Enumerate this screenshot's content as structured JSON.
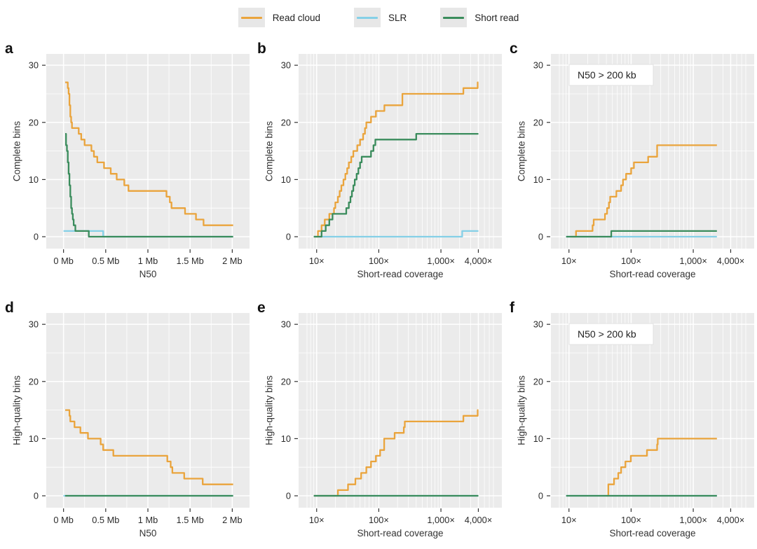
{
  "styles": {
    "plot_bg": "#EBEBEB",
    "grid_color": "#FFFFFF",
    "tick_text_color": "#2B2B2B",
    "axis_title_color": "#333333",
    "annotation_bg": "#FFFFFF",
    "annotation_border": "#E2E2E2"
  },
  "legend": {
    "items": [
      {
        "label": "Read cloud",
        "color": "#EAA43C"
      },
      {
        "label": "SLR",
        "color": "#85D0E7"
      },
      {
        "label": "Short read",
        "color": "#3A8C5C"
      }
    ]
  },
  "chart_data": [
    {
      "panel_label": "a",
      "type": "line",
      "interpolation": "step-after",
      "title": "",
      "xlabel": "N50",
      "ylabel": "Complete bins",
      "x_scale": "linear",
      "xlim": [
        0,
        2
      ],
      "ylim": [
        0,
        30
      ],
      "x_ticks": [
        {
          "v": 0,
          "label": "0 Mb"
        },
        {
          "v": 0.5,
          "label": "0.5 Mb"
        },
        {
          "v": 1,
          "label": "1 Mb"
        },
        {
          "v": 1.5,
          "label": "1.5 Mb"
        },
        {
          "v": 2,
          "label": "2 Mb"
        }
      ],
      "y_ticks": [
        {
          "v": 0,
          "label": "0"
        },
        {
          "v": 10,
          "label": "10"
        },
        {
          "v": 20,
          "label": "20"
        },
        {
          "v": 30,
          "label": "30"
        }
      ],
      "annotation": null,
      "series": [
        {
          "name": "Read cloud",
          "color": "#EAA43C",
          "x_end": 2.01,
          "points": [
            [
              0.02,
              27
            ],
            [
              0.05,
              26
            ],
            [
              0.06,
              25
            ],
            [
              0.07,
              23
            ],
            [
              0.08,
              21
            ],
            [
              0.09,
              20
            ],
            [
              0.1,
              19
            ],
            [
              0.18,
              18
            ],
            [
              0.21,
              17
            ],
            [
              0.25,
              16
            ],
            [
              0.33,
              15
            ],
            [
              0.36,
              14
            ],
            [
              0.4,
              13
            ],
            [
              0.48,
              12
            ],
            [
              0.56,
              11
            ],
            [
              0.63,
              10
            ],
            [
              0.72,
              9
            ],
            [
              0.77,
              8
            ],
            [
              1.22,
              7
            ],
            [
              1.26,
              6
            ],
            [
              1.28,
              5
            ],
            [
              1.44,
              4
            ],
            [
              1.57,
              3
            ],
            [
              1.66,
              2
            ]
          ]
        },
        {
          "name": "SLR",
          "color": "#85D0E7",
          "x_end": 2.01,
          "points": [
            [
              0,
              1
            ],
            [
              0.47,
              0
            ]
          ]
        },
        {
          "name": "Short read",
          "color": "#3A8C5C",
          "x_end": 2.01,
          "points": [
            [
              0.02,
              18
            ],
            [
              0.03,
              16
            ],
            [
              0.04,
              15
            ],
            [
              0.05,
              13
            ],
            [
              0.06,
              11
            ],
            [
              0.07,
              9
            ],
            [
              0.08,
              7
            ],
            [
              0.09,
              5
            ],
            [
              0.1,
              4
            ],
            [
              0.11,
              3
            ],
            [
              0.12,
              2
            ],
            [
              0.14,
              1
            ],
            [
              0.3,
              0
            ]
          ]
        }
      ]
    },
    {
      "panel_label": "b",
      "type": "line",
      "interpolation": "step-after",
      "title": "",
      "xlabel": "Short-read coverage",
      "ylabel": "Complete bins",
      "x_scale": "log",
      "xlim": [
        10,
        4000
      ],
      "ylim": [
        0,
        30
      ],
      "x_ticks": [
        {
          "v": 10,
          "label": "10×"
        },
        {
          "v": 100,
          "label": "100×"
        },
        {
          "v": 1000,
          "label": "1,000×"
        },
        {
          "v": 4000,
          "label": "4,000×"
        }
      ],
      "y_ticks": [
        {
          "v": 0,
          "label": "0"
        },
        {
          "v": 10,
          "label": "10"
        },
        {
          "v": 20,
          "label": "20"
        },
        {
          "v": 30,
          "label": "30"
        }
      ],
      "annotation": null,
      "series": [
        {
          "name": "Read cloud",
          "color": "#EAA43C",
          "x_end": 4000,
          "points": [
            [
              9,
              0
            ],
            [
              10.5,
              1
            ],
            [
              12,
              2
            ],
            [
              13.5,
              3
            ],
            [
              16,
              4
            ],
            [
              19,
              5
            ],
            [
              20,
              6
            ],
            [
              22,
              7
            ],
            [
              23.5,
              8
            ],
            [
              25,
              9
            ],
            [
              27,
              10
            ],
            [
              29,
              11
            ],
            [
              31,
              12
            ],
            [
              33,
              13
            ],
            [
              36,
              14
            ],
            [
              39,
              15
            ],
            [
              45,
              16
            ],
            [
              50,
              17
            ],
            [
              56,
              18
            ],
            [
              60,
              19
            ],
            [
              63,
              20
            ],
            [
              75,
              21
            ],
            [
              90,
              22
            ],
            [
              123,
              23
            ],
            [
              240,
              25
            ],
            [
              2300,
              26
            ],
            [
              3900,
              27
            ]
          ]
        },
        {
          "name": "SLR",
          "color": "#85D0E7",
          "x_end": 4000,
          "points": [
            [
              9,
              0
            ],
            [
              2200,
              1
            ]
          ]
        },
        {
          "name": "Short read",
          "color": "#3A8C5C",
          "x_end": 4000,
          "points": [
            [
              9,
              0
            ],
            [
              12,
              1
            ],
            [
              14,
              2
            ],
            [
              16,
              3
            ],
            [
              18,
              4
            ],
            [
              30,
              5
            ],
            [
              33,
              6
            ],
            [
              35,
              7
            ],
            [
              37,
              8
            ],
            [
              39,
              9
            ],
            [
              41,
              10
            ],
            [
              44,
              11
            ],
            [
              47,
              12
            ],
            [
              50,
              13
            ],
            [
              53,
              14
            ],
            [
              75,
              15
            ],
            [
              82,
              16
            ],
            [
              88,
              17
            ],
            [
              400,
              18
            ]
          ]
        }
      ]
    },
    {
      "panel_label": "c",
      "type": "line",
      "interpolation": "step-after",
      "title": "",
      "xlabel": "Short-read coverage",
      "ylabel": "Complete bins",
      "x_scale": "log",
      "xlim": [
        10,
        4000
      ],
      "ylim": [
        0,
        30
      ],
      "x_ticks": [
        {
          "v": 10,
          "label": "10×"
        },
        {
          "v": 100,
          "label": "100×"
        },
        {
          "v": 1000,
          "label": "1,000×"
        },
        {
          "v": 4000,
          "label": "4,000×"
        }
      ],
      "y_ticks": [
        {
          "v": 0,
          "label": "0"
        },
        {
          "v": 10,
          "label": "10"
        },
        {
          "v": 20,
          "label": "20"
        },
        {
          "v": 30,
          "label": "30"
        }
      ],
      "annotation": "N50 > 200 kb",
      "series": [
        {
          "name": "Read cloud",
          "color": "#EAA43C",
          "x_end": 2400,
          "points": [
            [
              11,
              0
            ],
            [
              13,
              1
            ],
            [
              24,
              2
            ],
            [
              25,
              3
            ],
            [
              38,
              4
            ],
            [
              41,
              5
            ],
            [
              44,
              6
            ],
            [
              46,
              7
            ],
            [
              58,
              8
            ],
            [
              69,
              9
            ],
            [
              74,
              10
            ],
            [
              83,
              11
            ],
            [
              100,
              12
            ],
            [
              111,
              13
            ],
            [
              188,
              14
            ],
            [
              262,
              16
            ]
          ]
        },
        {
          "name": "SLR",
          "color": "#85D0E7",
          "x_end": 2400,
          "points": [
            [
              9,
              0
            ]
          ]
        },
        {
          "name": "Short read",
          "color": "#3A8C5C",
          "x_end": 2400,
          "points": [
            [
              9,
              0
            ],
            [
              48,
              1
            ]
          ]
        }
      ]
    },
    {
      "panel_label": "d",
      "type": "line",
      "interpolation": "step-after",
      "title": "",
      "xlabel": "N50",
      "ylabel": "High-quality bins",
      "x_scale": "linear",
      "xlim": [
        0,
        2
      ],
      "ylim": [
        0,
        30
      ],
      "x_ticks": [
        {
          "v": 0,
          "label": "0 Mb"
        },
        {
          "v": 0.5,
          "label": "0.5 Mb"
        },
        {
          "v": 1,
          "label": "1 Mb"
        },
        {
          "v": 1.5,
          "label": "1.5 Mb"
        },
        {
          "v": 2,
          "label": "2 Mb"
        }
      ],
      "y_ticks": [
        {
          "v": 0,
          "label": "0"
        },
        {
          "v": 10,
          "label": "10"
        },
        {
          "v": 20,
          "label": "20"
        },
        {
          "v": 30,
          "label": "30"
        }
      ],
      "annotation": null,
      "series": [
        {
          "name": "Read cloud",
          "color": "#EAA43C",
          "x_end": 2.01,
          "points": [
            [
              0.02,
              15
            ],
            [
              0.07,
              14
            ],
            [
              0.08,
              13
            ],
            [
              0.13,
              12
            ],
            [
              0.2,
              11
            ],
            [
              0.29,
              10
            ],
            [
              0.44,
              9
            ],
            [
              0.47,
              8
            ],
            [
              0.59,
              7
            ],
            [
              1.23,
              6
            ],
            [
              1.27,
              5
            ],
            [
              1.29,
              4
            ],
            [
              1.43,
              3
            ],
            [
              1.65,
              2
            ]
          ]
        },
        {
          "name": "SLR",
          "color": "#85D0E7",
          "x_end": 2.01,
          "points": [
            [
              0,
              0
            ]
          ]
        },
        {
          "name": "Short read",
          "color": "#3A8C5C",
          "x_end": 2.01,
          "points": [
            [
              0.02,
              0
            ]
          ]
        }
      ]
    },
    {
      "panel_label": "e",
      "type": "line",
      "interpolation": "step-after",
      "title": "",
      "xlabel": "Short-read coverage",
      "ylabel": "High-quality bins",
      "x_scale": "log",
      "xlim": [
        10,
        4000
      ],
      "ylim": [
        0,
        30
      ],
      "x_ticks": [
        {
          "v": 10,
          "label": "10×"
        },
        {
          "v": 100,
          "label": "100×"
        },
        {
          "v": 1000,
          "label": "1,000×"
        },
        {
          "v": 4000,
          "label": "4,000×"
        }
      ],
      "y_ticks": [
        {
          "v": 0,
          "label": "0"
        },
        {
          "v": 10,
          "label": "10"
        },
        {
          "v": 20,
          "label": "20"
        },
        {
          "v": 30,
          "label": "30"
        }
      ],
      "annotation": null,
      "series": [
        {
          "name": "Read cloud",
          "color": "#EAA43C",
          "x_end": 4000,
          "points": [
            [
              9,
              0
            ],
            [
              22,
              1
            ],
            [
              32,
              2
            ],
            [
              42,
              3
            ],
            [
              52,
              4
            ],
            [
              63,
              5
            ],
            [
              75,
              6
            ],
            [
              90,
              7
            ],
            [
              105,
              8
            ],
            [
              122,
              10
            ],
            [
              180,
              11
            ],
            [
              253,
              12
            ],
            [
              262,
              13
            ],
            [
              2300,
              14
            ],
            [
              3900,
              15
            ]
          ]
        },
        {
          "name": "SLR",
          "color": "#85D0E7",
          "x_end": 4000,
          "points": [
            [
              9,
              0
            ]
          ]
        },
        {
          "name": "Short read",
          "color": "#3A8C5C",
          "x_end": 4000,
          "points": [
            [
              9,
              0
            ]
          ]
        }
      ]
    },
    {
      "panel_label": "f",
      "type": "line",
      "interpolation": "step-after",
      "title": "",
      "xlabel": "Short-read coverage",
      "ylabel": "High-quality bins",
      "x_scale": "log",
      "xlim": [
        10,
        4000
      ],
      "ylim": [
        0,
        30
      ],
      "x_ticks": [
        {
          "v": 10,
          "label": "10×"
        },
        {
          "v": 100,
          "label": "100×"
        },
        {
          "v": 1000,
          "label": "1,000×"
        },
        {
          "v": 4000,
          "label": "4,000×"
        }
      ],
      "y_ticks": [
        {
          "v": 0,
          "label": "0"
        },
        {
          "v": 10,
          "label": "10"
        },
        {
          "v": 20,
          "label": "20"
        },
        {
          "v": 30,
          "label": "30"
        }
      ],
      "annotation": "N50 > 200 kb",
      "series": [
        {
          "name": "Read cloud",
          "color": "#EAA43C",
          "x_end": 2400,
          "points": [
            [
              40,
              0
            ],
            [
              43,
              2
            ],
            [
              53,
              3
            ],
            [
              62,
              4
            ],
            [
              69,
              5
            ],
            [
              81,
              6
            ],
            [
              99,
              7
            ],
            [
              180,
              8
            ],
            [
              262,
              9
            ],
            [
              268,
              10
            ]
          ]
        },
        {
          "name": "SLR",
          "color": "#85D0E7",
          "x_end": 2400,
          "points": [
            [
              9,
              0
            ]
          ]
        },
        {
          "name": "Short read",
          "color": "#3A8C5C",
          "x_end": 2400,
          "points": [
            [
              9,
              0
            ]
          ]
        }
      ]
    }
  ]
}
